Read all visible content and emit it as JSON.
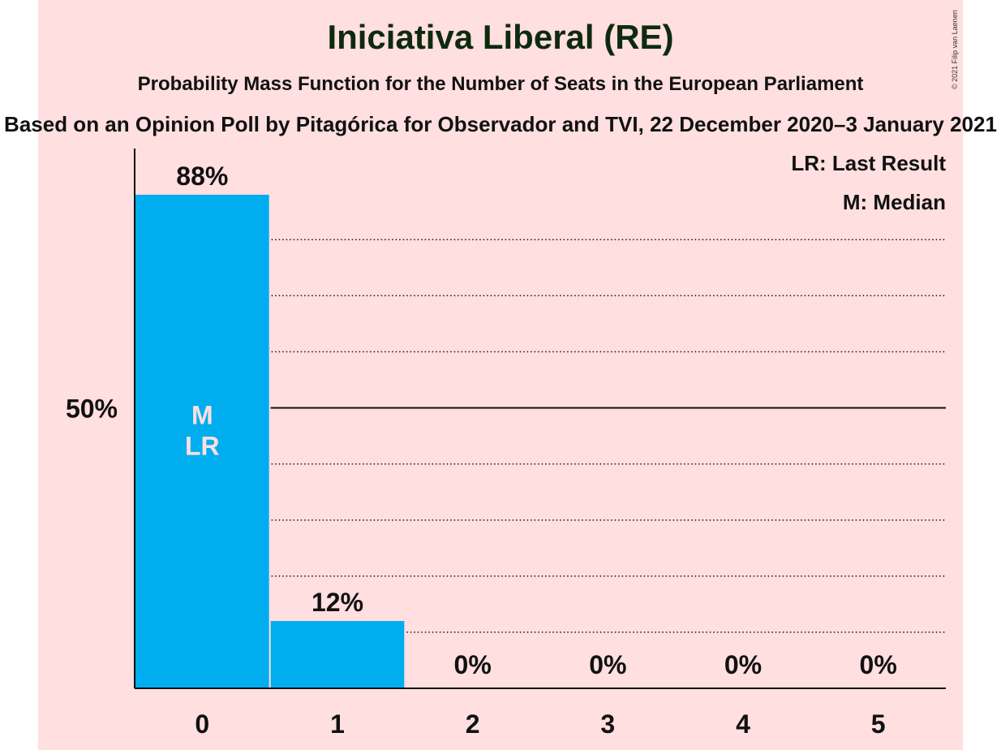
{
  "title": "Iniciativa Liberal (RE)",
  "subtitle": "Probability Mass Function for the Number of Seats in the European Parliament",
  "source": "Based on an Opinion Poll by Pitagórica for Observador and TVI, 22 December 2020–3 January 2021",
  "copyright": "© 2021 Filip van Laenen",
  "legend": {
    "lr": "LR: Last Result",
    "m": "M: Median"
  },
  "colors": {
    "background": "#ffdfe0",
    "bar": "#00adef",
    "text": "#111111",
    "inbar_text": "#ffdfe0"
  },
  "chart_data": {
    "type": "bar",
    "categories": [
      "0",
      "1",
      "2",
      "3",
      "4",
      "5"
    ],
    "values": [
      88,
      12,
      0,
      0,
      0,
      0
    ],
    "value_labels": [
      "88%",
      "12%",
      "0%",
      "0%",
      "0%",
      "0%"
    ],
    "ylim": [
      0,
      100
    ],
    "y_ticks": [
      {
        "value": 50,
        "label": "50%"
      }
    ],
    "gridlines": [
      10,
      20,
      30,
      40,
      60,
      70,
      80
    ],
    "median_index": 0,
    "last_result_index": 0,
    "median_label": "M",
    "last_result_label": "LR",
    "grid": true,
    "legend_position": "top-right"
  }
}
